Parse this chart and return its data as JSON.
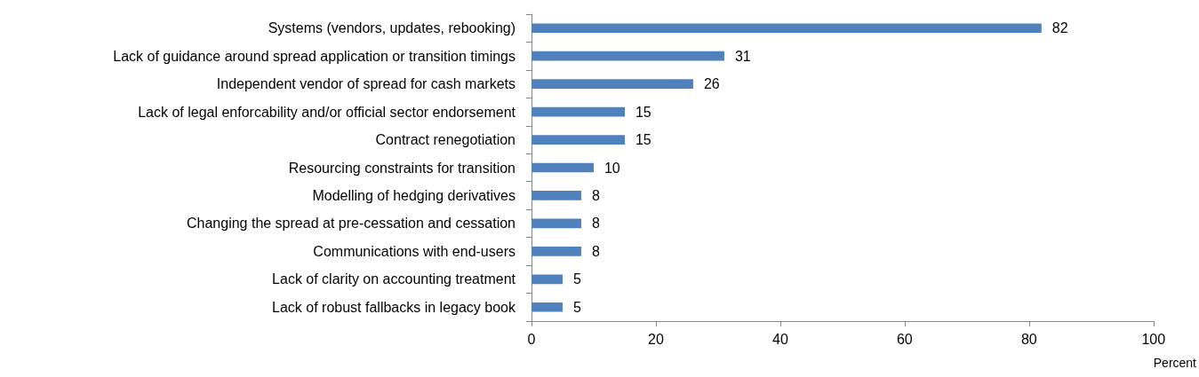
{
  "chart_data": {
    "type": "bar",
    "orientation": "horizontal",
    "categories": [
      "Systems (vendors, updates, rebooking)",
      "Lack of guidance around spread application or transition timings",
      "Independent vendor of spread for cash markets",
      "Lack of legal enforcability and/or official sector endorsement",
      "Contract renegotiation",
      "Resourcing constraints for transition",
      "Modelling of hedging derivatives",
      "Changing the spread at pre-cessation and cessation",
      "Communications with end-users",
      "Lack of clarity on accounting treatment",
      "Lack of robust fallbacks in legacy book"
    ],
    "values": [
      82,
      31,
      26,
      15,
      15,
      10,
      8,
      8,
      8,
      5,
      5
    ],
    "color": "#4f81bd",
    "xlabel": "Percent",
    "xlim": [
      0,
      100
    ],
    "xticks": [
      0,
      20,
      40,
      60,
      80,
      100
    ],
    "data_labels": true
  }
}
